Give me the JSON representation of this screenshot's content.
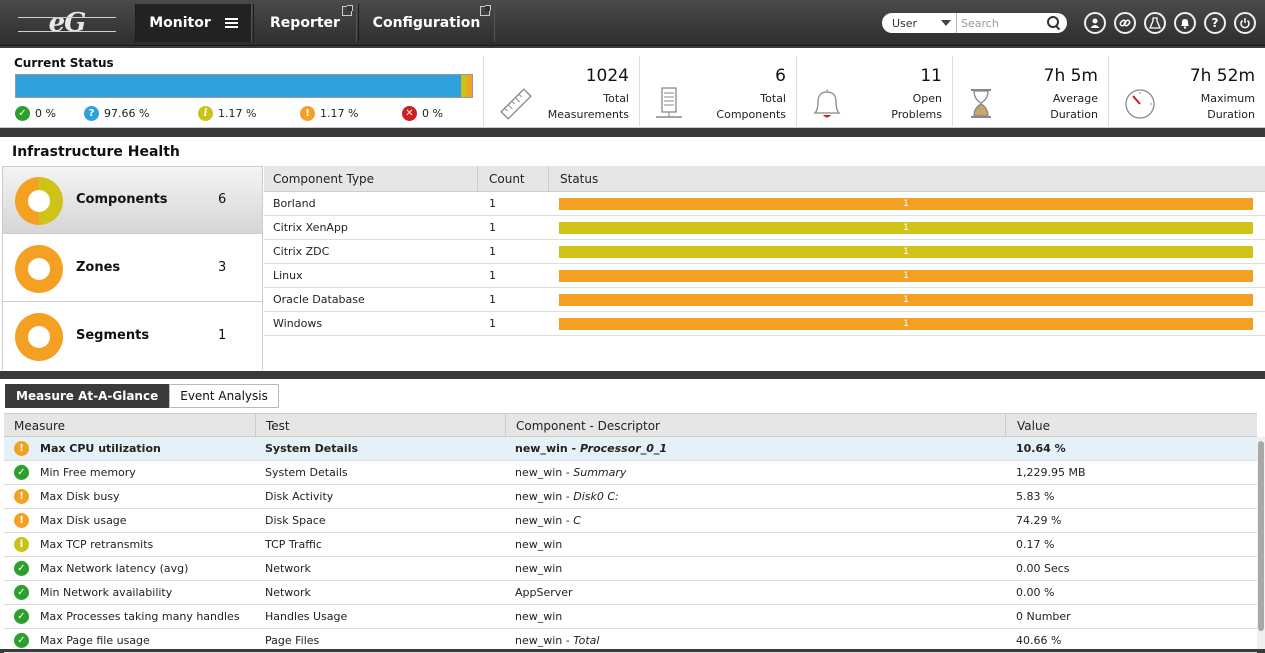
{
  "app": {
    "logo_text": "eG",
    "nav": [
      {
        "label": "Monitor"
      },
      {
        "label": "Reporter"
      },
      {
        "label": "Configuration"
      }
    ],
    "user_select": "User",
    "search_placeholder": "Search"
  },
  "current_status": {
    "title": "Current Status",
    "bar": {
      "unknown_pct": 97.66,
      "minor_pct": 1.17,
      "major_pct": 1.17
    },
    "legend": [
      {
        "label": "0 %",
        "icon": "check-icon",
        "color": "#2ca02c"
      },
      {
        "label": "97.66 %",
        "icon": "question-icon",
        "color": "#2ea0dc"
      },
      {
        "label": "1.17 %",
        "icon": "info-icon",
        "color": "#c9c21a"
      },
      {
        "label": "1.17 %",
        "icon": "warning-icon",
        "color": "#f4a023"
      },
      {
        "label": "0 %",
        "icon": "error-icon",
        "color": "#cc1f1f"
      }
    ]
  },
  "metrics": [
    {
      "value": "1024",
      "label1": "Total",
      "label2": "Measurements",
      "icon": "ruler-icon"
    },
    {
      "value": "6",
      "label1": "Total",
      "label2": "Components",
      "icon": "server-icon"
    },
    {
      "value": "11",
      "label1": "Open",
      "label2": "Problems",
      "icon": "bell-icon"
    },
    {
      "value": "7h 5m",
      "label1": "Average",
      "label2": "Duration",
      "icon": "hourglass-icon"
    },
    {
      "value": "7h 52m",
      "label1": "Maximum",
      "label2": "Duration",
      "icon": "gauge-icon"
    }
  ],
  "infra": {
    "title": "Infrastructure Health",
    "items": [
      {
        "name": "Components",
        "count": "6"
      },
      {
        "name": "Zones",
        "count": "3"
      },
      {
        "name": "Segments",
        "count": "1"
      }
    ],
    "headers": [
      "Component Type",
      "Count",
      "Status"
    ],
    "rows": [
      {
        "type": "Borland",
        "count": "1",
        "status": "1",
        "color": "#f4a023"
      },
      {
        "type": "Citrix XenApp",
        "count": "1",
        "status": "1",
        "color": "#cfc31a"
      },
      {
        "type": "Citrix ZDC",
        "count": "1",
        "status": "1",
        "color": "#cfc31a"
      },
      {
        "type": "Linux",
        "count": "1",
        "status": "1",
        "color": "#f4a023"
      },
      {
        "type": "Oracle Database",
        "count": "1",
        "status": "1",
        "color": "#f4a023"
      },
      {
        "type": "Windows",
        "count": "1",
        "status": "1",
        "color": "#f4a023"
      }
    ]
  },
  "measures": {
    "tabs": [
      "Measure At-A-Glance",
      "Event Analysis"
    ],
    "headers": [
      "Measure",
      "Test",
      "Component - Descriptor",
      "Value"
    ],
    "rows": [
      {
        "state": "warning",
        "measure": "Max CPU utilization",
        "test": "System Details",
        "component": "new_win",
        "descriptor": "Processor_0_1",
        "value": "10.64 %"
      },
      {
        "state": "ok",
        "measure": "Min Free memory",
        "test": "System Details",
        "component": "new_win",
        "descriptor": "Summary",
        "value": "1,229.95 MB"
      },
      {
        "state": "warning",
        "measure": "Max Disk busy",
        "test": "Disk Activity",
        "component": "new_win",
        "descriptor": "Disk0 C:",
        "value": "5.83 %"
      },
      {
        "state": "warning",
        "measure": "Max Disk usage",
        "test": "Disk Space",
        "component": "new_win",
        "descriptor": "C",
        "value": "74.29 %"
      },
      {
        "state": "info",
        "measure": "Max TCP retransmits",
        "test": "TCP Traffic",
        "component": "new_win",
        "descriptor": "",
        "value": "0.17 %"
      },
      {
        "state": "ok",
        "measure": "Max Network latency (avg)",
        "test": "Network",
        "component": "new_win",
        "descriptor": "",
        "value": "0.00 Secs"
      },
      {
        "state": "ok",
        "measure": "Min Network availability",
        "test": "Network",
        "component": "AppServer",
        "descriptor": "",
        "value": "0.00 %"
      },
      {
        "state": "ok",
        "measure": "Max Processes taking many handles",
        "test": "Handles Usage",
        "component": "new_win",
        "descriptor": "",
        "value": "0 Number"
      },
      {
        "state": "ok",
        "measure": "Max Page file usage",
        "test": "Page Files",
        "component": "new_win",
        "descriptor": "Total",
        "value": "40.66 %"
      }
    ]
  }
}
